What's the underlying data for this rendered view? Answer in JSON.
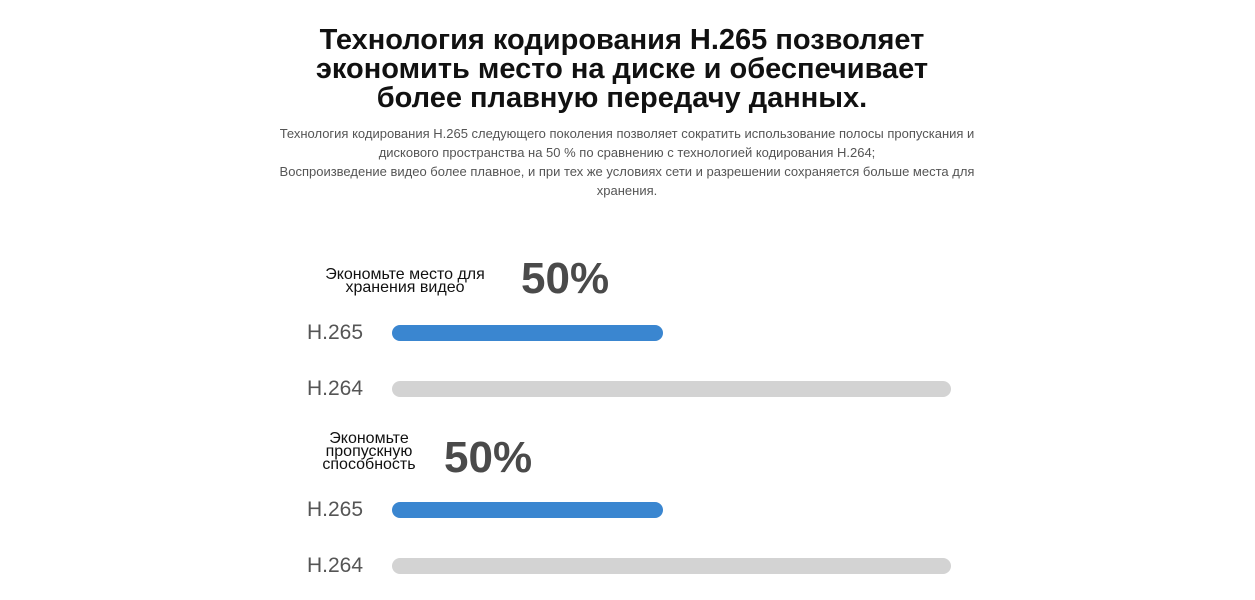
{
  "header": {
    "title": "Технология кодирования H.265 позволяет экономить место на диске и обеспечивает более плавную передачу данных.",
    "subtitle": [
      "Технология кодирования H.265 следующего поколения позволяет сократить использование полосы пропускания и дискового пространства на 50 % по сравнению с технологией кодирования H.264;",
      "Воспроизведение видео более плавное, и при тех же условиях сети и разрешении сохраняется больше места для хранения."
    ]
  },
  "chart_data": {
    "type": "bar",
    "xlim": [
      0,
      100
    ],
    "colors": [
      "#3a86d0",
      "#d3d3d3"
    ],
    "groups": [
      {
        "label": "Экономьте место для хранения видео",
        "highlight": "50%",
        "categories": [
          "H.265",
          "H.264"
        ],
        "values": [
          48.5,
          100
        ]
      },
      {
        "label": "Экономьте пропускную способность",
        "highlight": "50%",
        "categories": [
          "H.265",
          "H.264"
        ],
        "values": [
          48.5,
          100
        ]
      }
    ]
  }
}
